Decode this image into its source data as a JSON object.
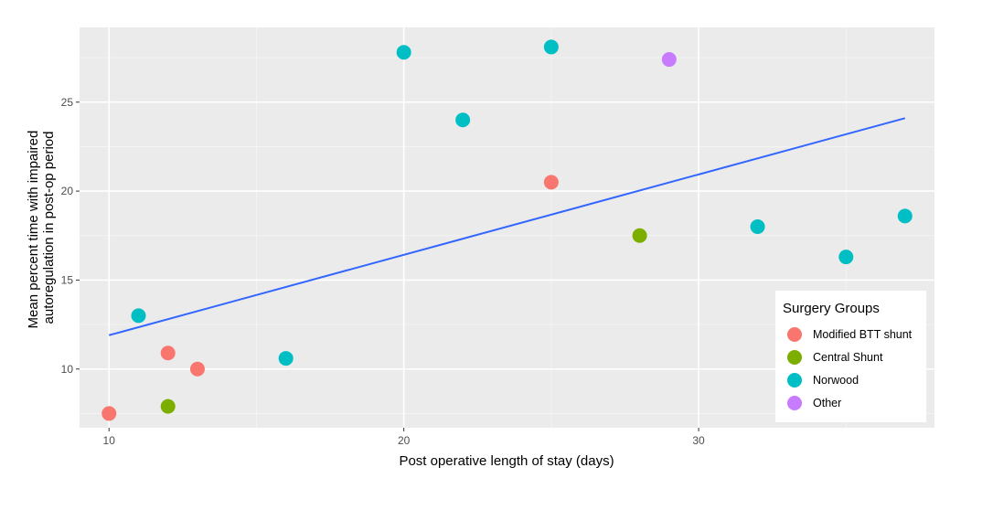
{
  "chart_data": {
    "type": "scatter",
    "xlabel": "Post operative length of stay (days)",
    "ylabel_lines": [
      "Mean percent time with impaired",
      "autoregulation in post-op period"
    ],
    "xlim": [
      9,
      38
    ],
    "ylim": [
      6.7,
      29.2
    ],
    "x_ticks": [
      10,
      20,
      30
    ],
    "y_ticks": [
      10,
      15,
      20,
      25
    ],
    "x_minor_ticks": [
      15,
      25,
      35
    ],
    "y_minor_ticks": [
      7.5,
      12.5,
      17.5,
      22.5,
      27.5
    ],
    "grid": true,
    "legend": {
      "title": "Surgery Groups",
      "placement": "bottom-right",
      "entries": [
        "Modified BTT shunt",
        "Central Shunt",
        "Norwood",
        "Other"
      ]
    },
    "series": [
      {
        "name": "Modified BTT shunt",
        "color": "#F8766D",
        "points": [
          [
            10,
            7.5
          ],
          [
            12,
            10.9
          ],
          [
            13,
            10.0
          ],
          [
            25,
            20.5
          ]
        ]
      },
      {
        "name": "Central Shunt",
        "color": "#7CAE00",
        "points": [
          [
            12,
            7.9
          ],
          [
            28,
            17.5
          ]
        ]
      },
      {
        "name": "Norwood",
        "color": "#00BFC4",
        "points": [
          [
            11,
            13.0
          ],
          [
            16,
            10.6
          ],
          [
            20,
            27.8
          ],
          [
            22,
            24.0
          ],
          [
            25,
            28.1
          ],
          [
            32,
            18.0
          ],
          [
            35,
            16.3
          ],
          [
            37,
            18.6
          ]
        ]
      },
      {
        "name": "Other",
        "color": "#C77CFF",
        "points": [
          [
            29,
            27.4
          ]
        ]
      }
    ],
    "trend_line": {
      "color": "#3366FF",
      "from": [
        10,
        11.9
      ],
      "to": [
        37,
        24.1
      ]
    }
  }
}
